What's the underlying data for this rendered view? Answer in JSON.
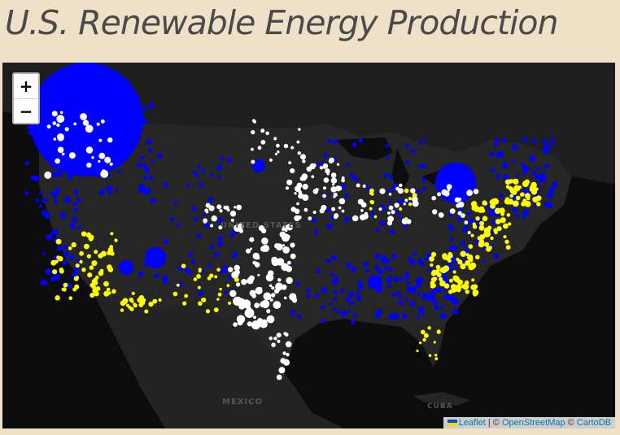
{
  "page": {
    "title": "U.S. Renewable Energy Production"
  },
  "map": {
    "zoom_in_label": "+",
    "zoom_out_label": "−",
    "labels": {
      "usa": "UNITED STATES",
      "mexico": "MEXICO",
      "cuba": "CUBA"
    },
    "attribution": {
      "leaflet": "Leaflet",
      "sep1": " | © ",
      "osm": "OpenStreetMap",
      "sep2": " © ",
      "carto": "CartoDB"
    },
    "colors": {
      "background": "#0c0c0c",
      "land": "#222222",
      "hydro": "#0000ff",
      "wind": "#ffffff",
      "solar": "#ffff00"
    }
  }
}
